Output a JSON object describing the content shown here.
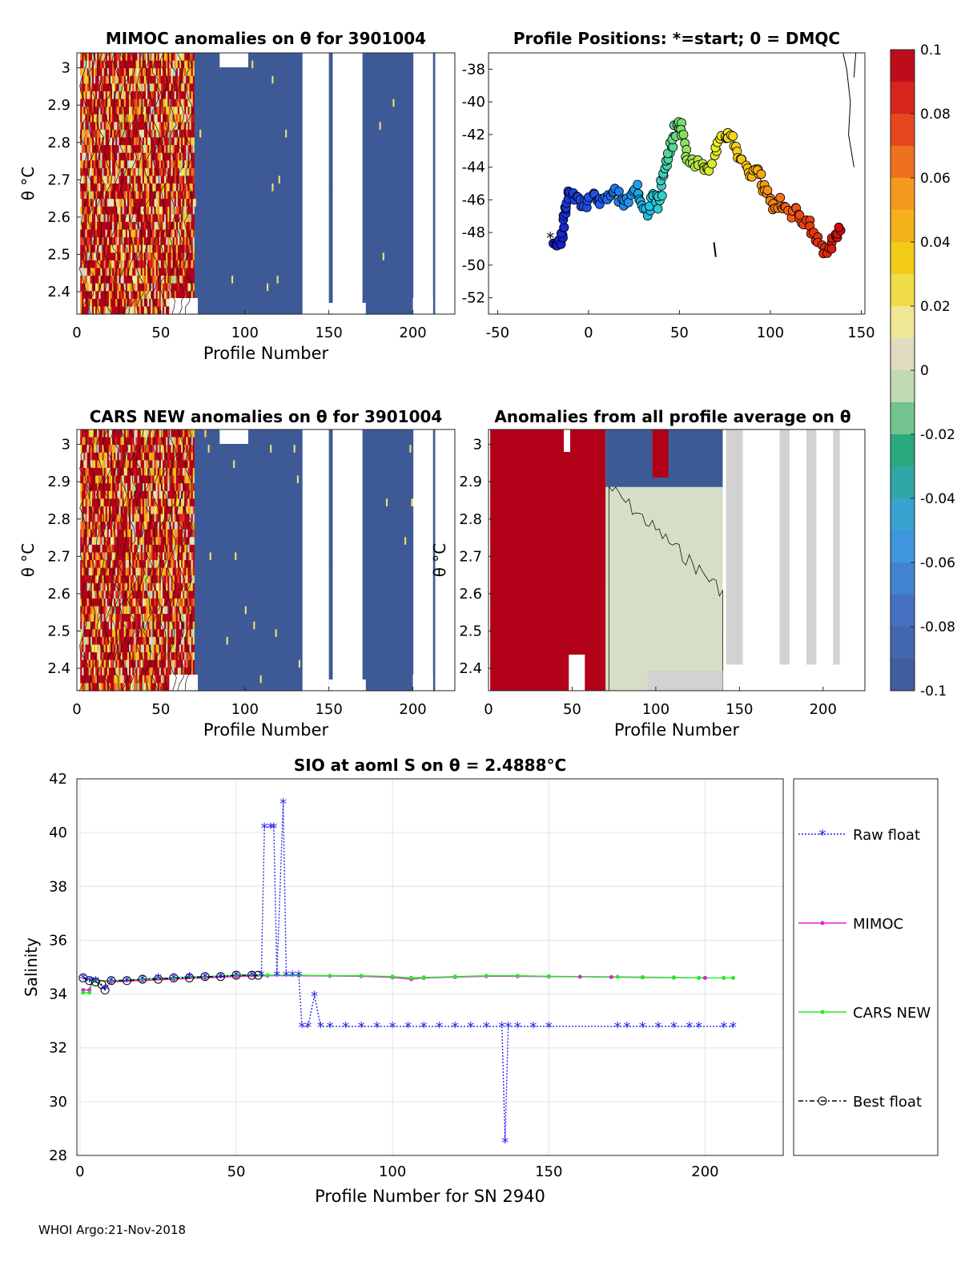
{
  "figure": {
    "footer": "WHOI Argo:21-Nov-2018"
  },
  "chart_data": [
    {
      "id": "mimoc",
      "type": "heatmap",
      "title": "MIMOC anomalies on θ  for 3901004",
      "xlabel": "Profile Number",
      "ylabel": "θ °C",
      "xlim": [
        0,
        225
      ],
      "ylim": [
        2.34,
        3.04
      ],
      "xticks": [
        0,
        50,
        100,
        150,
        200
      ],
      "yticks": [
        2.4,
        2.5,
        2.6,
        2.7,
        2.8,
        2.9,
        3.0
      ],
      "ytick_labels": [
        "2.4",
        "2.5",
        "2.6",
        "2.7",
        "2.8",
        "2.9",
        "3"
      ],
      "colorbar_range": [
        -0.1,
        0.1
      ],
      "blank_profile_ranges": [
        [
          134,
          150
        ],
        [
          152,
          170
        ],
        [
          200,
          212
        ]
      ]
    },
    {
      "id": "positions",
      "type": "scatter",
      "title": "Profile Positions: *=start; 0 = DMQC",
      "xlim": [
        -55,
        152
      ],
      "ylim": [
        -53,
        -37
      ],
      "xticks": [
        -50,
        0,
        50,
        100,
        150
      ],
      "yticks": [
        -52,
        -50,
        -48,
        -46,
        -44,
        -42,
        -40,
        -38
      ],
      "track": [
        [
          -19,
          -48.5
        ],
        [
          -17,
          -48.8
        ],
        [
          -15,
          -48.3
        ],
        [
          -14,
          -47.6
        ],
        [
          -12,
          -46.6
        ],
        [
          -12,
          -45.8
        ],
        [
          -9,
          -45.6
        ],
        [
          -6,
          -46.1
        ],
        [
          -2,
          -46.4
        ],
        [
          2,
          -45.6
        ],
        [
          6,
          -46.2
        ],
        [
          10,
          -45.9
        ],
        [
          14,
          -45.3
        ],
        [
          18,
          -46.2
        ],
        [
          22,
          -46.0
        ],
        [
          26,
          -45.2
        ],
        [
          29,
          -45.9
        ],
        [
          33,
          -46.7
        ],
        [
          36,
          -45.6
        ],
        [
          38,
          -46.3
        ],
        [
          40,
          -45.2
        ],
        [
          42,
          -44.2
        ],
        [
          44,
          -43.4
        ],
        [
          46,
          -42.6
        ],
        [
          48,
          -41.6
        ],
        [
          50,
          -41.2
        ],
        [
          52,
          -41.9
        ],
        [
          54,
          -43.1
        ],
        [
          58,
          -44.0
        ],
        [
          62,
          -43.5
        ],
        [
          66,
          -44.3
        ],
        [
          70,
          -43.1
        ],
        [
          73,
          -42.3
        ],
        [
          76,
          -41.9
        ],
        [
          79,
          -42.2
        ],
        [
          82,
          -43.2
        ],
        [
          86,
          -43.8
        ],
        [
          90,
          -44.5
        ],
        [
          93,
          -44.2
        ],
        [
          96,
          -45.2
        ],
        [
          99,
          -45.7
        ],
        [
          102,
          -46.4
        ],
        [
          106,
          -46.1
        ],
        [
          110,
          -46.9
        ],
        [
          114,
          -46.6
        ],
        [
          118,
          -47.3
        ],
        [
          122,
          -47.6
        ],
        [
          126,
          -48.5
        ],
        [
          130,
          -49.1
        ],
        [
          134,
          -48.7
        ],
        [
          137,
          -48.1
        ],
        [
          139,
          -47.7
        ]
      ],
      "start": [
        -21,
        -48.4
      ]
    },
    {
      "id": "cars",
      "type": "heatmap",
      "title": "CARS NEW anomalies on θ for 3901004",
      "xlabel": "Profile Number",
      "ylabel": "θ °C",
      "xlim": [
        0,
        225
      ],
      "ylim": [
        2.34,
        3.04
      ],
      "xticks": [
        0,
        50,
        100,
        150,
        200
      ],
      "yticks": [
        2.4,
        2.5,
        2.6,
        2.7,
        2.8,
        2.9,
        3.0
      ],
      "ytick_labels": [
        "2.4",
        "2.5",
        "2.6",
        "2.7",
        "2.8",
        "2.9",
        "3"
      ],
      "colorbar_range": [
        -0.1,
        0.1
      ],
      "blank_profile_ranges": [
        [
          134,
          150
        ],
        [
          152,
          170
        ],
        [
          200,
          212
        ]
      ]
    },
    {
      "id": "avg",
      "type": "heatmap",
      "title": "Anomalies from all profile average on θ",
      "xlabel": "Profile Number",
      "ylabel": "θ °C",
      "xlim": [
        0,
        225
      ],
      "ylim": [
        2.34,
        3.04
      ],
      "xticks": [
        0,
        50,
        100,
        150,
        200
      ],
      "yticks": [
        2.4,
        2.5,
        2.6,
        2.7,
        2.8,
        2.9,
        3.0
      ],
      "ytick_labels": [
        "2.4",
        "2.5",
        "2.6",
        "2.7",
        "2.8",
        "2.9",
        "3"
      ],
      "regions": [
        {
          "x": [
            0,
            70
          ],
          "value": 0.1
        },
        {
          "x": [
            70,
            140
          ],
          "value": 0.0
        }
      ]
    },
    {
      "id": "salinity",
      "type": "line",
      "title": "SIO at aoml S on θ = 2.4888°C",
      "xlabel": "Profile Number for SN 2940",
      "ylabel": "Salinity",
      "xlim": [
        -1,
        225
      ],
      "ylim": [
        28,
        42
      ],
      "xticks": [
        0,
        50,
        100,
        150,
        200
      ],
      "yticks": [
        28,
        30,
        32,
        34,
        36,
        38,
        40,
        42
      ],
      "legend": [
        "Raw float",
        "MIMOC",
        "CARS NEW",
        "Best float"
      ],
      "raw_float": [
        [
          1,
          34.6
        ],
        [
          3,
          34.5
        ],
        [
          5,
          34.5
        ],
        [
          8,
          34.2
        ],
        [
          10,
          34.5
        ],
        [
          15,
          34.5
        ],
        [
          20,
          34.55
        ],
        [
          25,
          34.6
        ],
        [
          30,
          34.6
        ],
        [
          35,
          34.65
        ],
        [
          40,
          34.65
        ],
        [
          45,
          34.65
        ],
        [
          50,
          34.7
        ],
        [
          55,
          34.7
        ],
        [
          58,
          34.7
        ],
        [
          59,
          40.2
        ],
        [
          61,
          40.2
        ],
        [
          62,
          40.2
        ],
        [
          63,
          34.7
        ],
        [
          65,
          41.1
        ],
        [
          66,
          34.7
        ],
        [
          68,
          34.7
        ],
        [
          70,
          34.7
        ],
        [
          71,
          32.8
        ],
        [
          73,
          32.8
        ],
        [
          75,
          33.95
        ],
        [
          77,
          32.8
        ],
        [
          80,
          32.8
        ],
        [
          85,
          32.8
        ],
        [
          90,
          32.8
        ],
        [
          95,
          32.8
        ],
        [
          100,
          32.8
        ],
        [
          105,
          32.8
        ],
        [
          110,
          32.8
        ],
        [
          115,
          32.8
        ],
        [
          120,
          32.8
        ],
        [
          125,
          32.8
        ],
        [
          130,
          32.8
        ],
        [
          135,
          32.8
        ],
        [
          136,
          28.5
        ],
        [
          137,
          32.8
        ],
        [
          140,
          32.8
        ],
        [
          145,
          32.8
        ],
        [
          150,
          32.8
        ],
        [
          172,
          32.8
        ],
        [
          175,
          32.8
        ],
        [
          180,
          32.8
        ],
        [
          185,
          32.8
        ],
        [
          190,
          32.8
        ],
        [
          195,
          32.8
        ],
        [
          198,
          32.8
        ],
        [
          206,
          32.8
        ],
        [
          209,
          32.8
        ]
      ],
      "mimoc": [
        [
          1,
          34.15
        ],
        [
          3,
          34.15
        ],
        [
          4,
          34.55
        ],
        [
          10,
          34.45
        ],
        [
          20,
          34.5
        ],
        [
          30,
          34.55
        ],
        [
          40,
          34.6
        ],
        [
          50,
          34.65
        ],
        [
          60,
          34.68
        ],
        [
          70,
          34.68
        ],
        [
          80,
          34.67
        ],
        [
          90,
          34.66
        ],
        [
          100,
          34.62
        ],
        [
          106,
          34.55
        ],
        [
          110,
          34.6
        ],
        [
          120,
          34.63
        ],
        [
          130,
          34.66
        ],
        [
          140,
          34.66
        ],
        [
          150,
          34.65
        ],
        [
          160,
          34.64
        ],
        [
          170,
          34.63
        ],
        [
          180,
          34.62
        ],
        [
          190,
          34.61
        ],
        [
          200,
          34.6
        ]
      ],
      "cars": [
        [
          1,
          34.05
        ],
        [
          3,
          34.05
        ],
        [
          4,
          34.5
        ],
        [
          10,
          34.5
        ],
        [
          20,
          34.55
        ],
        [
          30,
          34.6
        ],
        [
          40,
          34.65
        ],
        [
          50,
          34.7
        ],
        [
          60,
          34.7
        ],
        [
          70,
          34.7
        ],
        [
          80,
          34.68
        ],
        [
          90,
          34.68
        ],
        [
          100,
          34.65
        ],
        [
          106,
          34.6
        ],
        [
          110,
          34.62
        ],
        [
          120,
          34.65
        ],
        [
          130,
          34.68
        ],
        [
          140,
          34.68
        ],
        [
          150,
          34.66
        ],
        [
          172,
          34.64
        ],
        [
          180,
          34.63
        ],
        [
          190,
          34.62
        ],
        [
          198,
          34.6
        ],
        [
          206,
          34.6
        ],
        [
          209,
          34.6
        ]
      ],
      "best_float": [
        [
          1,
          34.6
        ],
        [
          3,
          34.5
        ],
        [
          5,
          34.45
        ],
        [
          7,
          34.35
        ],
        [
          8,
          34.15
        ],
        [
          10,
          34.5
        ],
        [
          15,
          34.5
        ],
        [
          20,
          34.55
        ],
        [
          25,
          34.55
        ],
        [
          30,
          34.6
        ],
        [
          35,
          34.6
        ],
        [
          40,
          34.65
        ],
        [
          45,
          34.65
        ],
        [
          50,
          34.7
        ],
        [
          55,
          34.7
        ],
        [
          57,
          34.7
        ]
      ]
    },
    {
      "id": "colorbar",
      "type": "colorbar",
      "range": [
        -0.1,
        0.1
      ],
      "ticks": [
        "0.1",
        "0.08",
        "0.06",
        "0.04",
        "0.02",
        "0",
        "-0.02",
        "-0.04",
        "-0.06",
        "-0.08",
        "-0.1"
      ]
    }
  ]
}
